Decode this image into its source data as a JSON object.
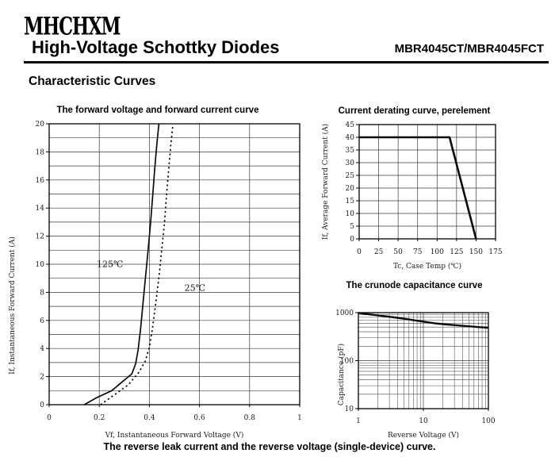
{
  "page": {
    "background": "#ffffff",
    "text_color": "#000000"
  },
  "header": {
    "logo": "MHCHXM",
    "title": "High-Voltage Schottky Diodes",
    "part_number": "MBR4045CT/MBR4045FCT",
    "section_heading": "Characteristic Curves"
  },
  "footer": {
    "caption": "The reverse leak current and the reverse voltage (single-device) curve."
  },
  "chart_data": [
    {
      "id": "forward-voltage-current",
      "type": "line",
      "title": "The forward voltage and forward current curve",
      "xlabel": "Vf, Instantaneous Forward Voltage (V)",
      "ylabel": "If, Instantaneous Forward Current (A)",
      "xscale": "linear",
      "yscale": "linear",
      "xlim": [
        0,
        1
      ],
      "ylim": [
        0,
        20
      ],
      "grid": true,
      "legend": "inline-annotations",
      "xgrid": [
        0,
        0.2,
        0.4,
        0.6,
        0.8,
        1
      ],
      "ygrid": [
        0,
        1,
        2,
        3,
        4,
        5,
        6,
        7,
        8,
        9,
        10,
        11,
        12,
        13,
        14,
        15,
        16,
        17,
        18,
        19,
        20
      ],
      "xticks": [
        [
          0,
          "0"
        ],
        [
          0.2,
          "0.2"
        ],
        [
          0.4,
          "0.4"
        ],
        [
          0.6,
          "0.6"
        ],
        [
          0.8,
          "0.8"
        ],
        [
          1,
          "1"
        ]
      ],
      "yticks": [
        [
          0,
          "0"
        ],
        [
          2,
          "2"
        ],
        [
          4,
          "4"
        ],
        [
          6,
          "6"
        ],
        [
          8,
          "8"
        ],
        [
          10,
          "10"
        ],
        [
          12,
          "12"
        ],
        [
          14,
          "14"
        ],
        [
          16,
          "16"
        ],
        [
          18,
          "18"
        ],
        [
          20,
          "20"
        ]
      ],
      "series": [
        {
          "name": "125℃",
          "line": "solid",
          "width": 1.7,
          "points": [
            [
              0.14,
              0
            ],
            [
              0.19,
              0.5
            ],
            [
              0.25,
              1
            ],
            [
              0.29,
              1.6
            ],
            [
              0.33,
              2.2
            ],
            [
              0.345,
              2.9
            ],
            [
              0.355,
              3.9
            ],
            [
              0.365,
              5.4
            ],
            [
              0.375,
              7.3
            ],
            [
              0.385,
              9.2
            ],
            [
              0.395,
              11
            ],
            [
              0.405,
              13
            ],
            [
              0.413,
              14.8
            ],
            [
              0.421,
              16.7
            ],
            [
              0.43,
              18.6
            ],
            [
              0.438,
              20
            ]
          ]
        },
        {
          "name": "25℃",
          "line": "dotted",
          "width": 1.7,
          "points": [
            [
              0.205,
              0
            ],
            [
              0.26,
              0.7
            ],
            [
              0.315,
              1.4
            ],
            [
              0.358,
              2.3
            ],
            [
              0.384,
              3.1
            ],
            [
              0.4,
              4.1
            ],
            [
              0.412,
              5.4
            ],
            [
              0.426,
              7.3
            ],
            [
              0.439,
              9.2
            ],
            [
              0.449,
              11
            ],
            [
              0.46,
              12.9
            ],
            [
              0.468,
              14.8
            ],
            [
              0.477,
              16.7
            ],
            [
              0.486,
              18.6
            ],
            [
              0.493,
              19.8
            ]
          ]
        }
      ],
      "annotations": [
        {
          "text": "125℃",
          "x": 0.19,
          "y": 9.8
        },
        {
          "text": "25℃",
          "x": 0.54,
          "y": 8.1
        }
      ]
    },
    {
      "id": "current-derating",
      "type": "line",
      "title": "Current derating curve, perelement",
      "xlabel": "Tc, Case Temp (℃)",
      "ylabel": "If, Average Forward Current (A)",
      "xscale": "linear",
      "yscale": "linear",
      "xlim": [
        0,
        175
      ],
      "ylim": [
        0,
        45
      ],
      "grid": true,
      "xgrid": [
        0,
        25,
        50,
        75,
        100,
        125,
        150,
        175
      ],
      "ygrid": [
        0,
        5,
        10,
        15,
        20,
        25,
        30,
        35,
        40,
        45
      ],
      "xticks": [
        [
          0,
          "0"
        ],
        [
          25,
          "25"
        ],
        [
          50,
          "50"
        ],
        [
          75,
          "75"
        ],
        [
          100,
          "100"
        ],
        [
          125,
          "125"
        ],
        [
          150,
          "150"
        ],
        [
          175,
          "175"
        ]
      ],
      "yticks": [
        [
          0,
          "0"
        ],
        [
          5,
          "5"
        ],
        [
          10,
          "10"
        ],
        [
          15,
          "15"
        ],
        [
          20,
          "20"
        ],
        [
          25,
          "25"
        ],
        [
          30,
          "30"
        ],
        [
          35,
          "35"
        ],
        [
          40,
          "40"
        ],
        [
          45,
          "45"
        ]
      ],
      "series": [
        {
          "name": "derating",
          "line": "solid",
          "width": 2.6,
          "points": [
            [
              0,
              40
            ],
            [
              116,
              40
            ],
            [
              150,
              0
            ]
          ]
        }
      ],
      "annotations": []
    },
    {
      "id": "crunode-capacitance",
      "type": "line",
      "title": "The crunode capacitance curve",
      "xlabel": "Reverse Voltage (V)",
      "ylabel": "Capacitance (pF)",
      "xscale": "log",
      "yscale": "log",
      "xlim": [
        1,
        100
      ],
      "ylim": [
        10,
        1000
      ],
      "grid": true,
      "xgrid": [
        1,
        10,
        100
      ],
      "xgrid_minor": [
        2,
        3,
        4,
        5,
        6,
        7,
        8,
        9,
        20,
        30,
        40,
        50,
        60,
        70,
        80,
        90
      ],
      "ygrid": [
        10,
        100,
        1000
      ],
      "ygrid_minor": [
        20,
        30,
        40,
        50,
        60,
        70,
        80,
        90,
        200,
        300,
        400,
        500,
        600,
        700,
        800,
        900
      ],
      "xticks": [
        [
          1,
          "1"
        ],
        [
          10,
          "10"
        ],
        [
          100,
          "100"
        ]
      ],
      "yticks": [
        [
          10,
          "10"
        ],
        [
          100,
          "100"
        ],
        [
          1000,
          "1000"
        ]
      ],
      "series": [
        {
          "name": "capacitance",
          "line": "solid",
          "width": 2.4,
          "points": [
            [
              1,
              990
            ],
            [
              1.5,
              920
            ],
            [
              2,
              880
            ],
            [
              3,
              820
            ],
            [
              4,
              780
            ],
            [
              5,
              750
            ],
            [
              7,
              700
            ],
            [
              10,
              650
            ],
            [
              15,
              600
            ],
            [
              20,
              575
            ],
            [
              30,
              550
            ],
            [
              50,
              520
            ],
            [
              70,
              500
            ],
            [
              100,
              485
            ]
          ]
        }
      ],
      "annotations": []
    }
  ]
}
